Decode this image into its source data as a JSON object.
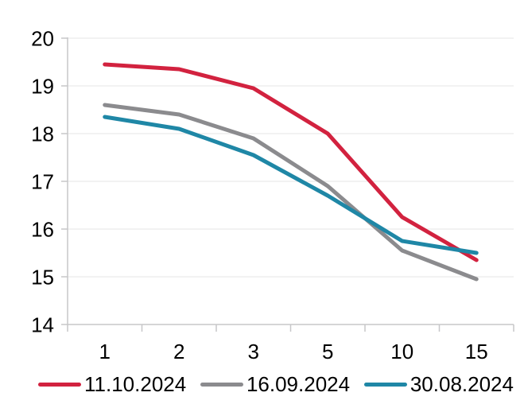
{
  "colors": {
    "background": "#ffffff",
    "text": "#000000",
    "axis": "#c7c7c9",
    "gridline": "#eaeaea",
    "series_red": "#d2223f",
    "series_gray": "#8b8b8e",
    "series_blue": "#1f87a6"
  },
  "chart_data": {
    "type": "line",
    "title": "",
    "xlabel": "",
    "ylabel": "",
    "categories": [
      "1",
      "2",
      "3",
      "5",
      "10",
      "15"
    ],
    "series": [
      {
        "name": "11.10.2024",
        "color": "#d2223f",
        "values": [
          19.45,
          19.35,
          18.95,
          18.0,
          16.25,
          15.35
        ]
      },
      {
        "name": "16.09.2024",
        "color": "#8b8b8e",
        "values": [
          18.6,
          18.4,
          17.9,
          16.9,
          15.55,
          14.95
        ]
      },
      {
        "name": "30.08.2024",
        "color": "#1f87a6",
        "values": [
          18.35,
          18.1,
          17.55,
          16.7,
          15.75,
          15.5
        ]
      }
    ],
    "y_ticks": [
      20,
      19,
      18,
      17,
      16,
      15,
      14
    ],
    "ylim": [
      14,
      20
    ],
    "grid": "horizontal",
    "legend_position": "bottom"
  }
}
